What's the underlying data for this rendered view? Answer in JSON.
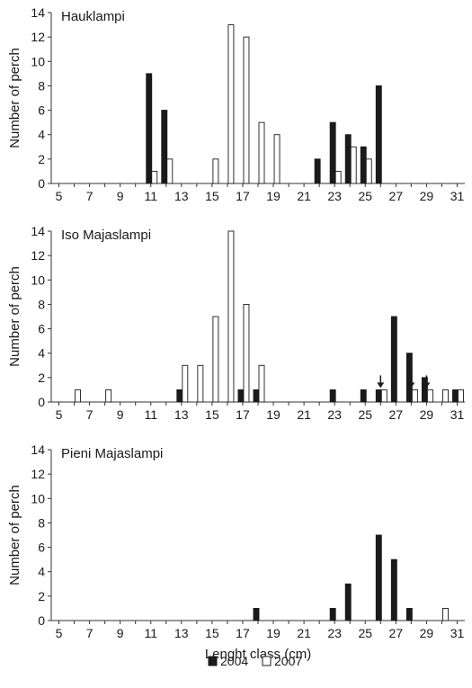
{
  "chart_data": [
    {
      "type": "bar",
      "title": "Hauklampi",
      "ylabel": "Number of perch",
      "xlabel": "",
      "x_categories": [
        5,
        6,
        7,
        8,
        9,
        10,
        11,
        12,
        13,
        14,
        15,
        16,
        17,
        18,
        19,
        20,
        21,
        22,
        23,
        24,
        25,
        26,
        27,
        28,
        29,
        30,
        31
      ],
      "x_tick_labels": [
        "5",
        "7",
        "9",
        "11",
        "13",
        "15",
        "17",
        "19",
        "21",
        "23",
        "25",
        "27",
        "29",
        "31"
      ],
      "ylim": [
        0,
        14
      ],
      "y_ticks": [
        "0",
        "2",
        "4",
        "6",
        "8",
        "10",
        "12",
        "14"
      ],
      "series": [
        {
          "name": "2004",
          "points": [
            [
              11,
              9
            ],
            [
              12,
              6
            ],
            [
              22,
              2
            ],
            [
              23,
              5
            ],
            [
              24,
              4
            ],
            [
              25,
              3
            ],
            [
              26,
              8
            ]
          ]
        },
        {
          "name": "2007",
          "points": [
            [
              11,
              1
            ],
            [
              12,
              2
            ],
            [
              15,
              2
            ],
            [
              16,
              13
            ],
            [
              17,
              12
            ],
            [
              18,
              5
            ],
            [
              19,
              4
            ],
            [
              23,
              1
            ],
            [
              24,
              3
            ],
            [
              25,
              2
            ]
          ]
        }
      ],
      "arrows_at": []
    },
    {
      "type": "bar",
      "title": "Iso Majaslampi",
      "ylabel": "Number of perch",
      "xlabel": "",
      "x_categories": [
        5,
        6,
        7,
        8,
        9,
        10,
        11,
        12,
        13,
        14,
        15,
        16,
        17,
        18,
        19,
        20,
        21,
        22,
        23,
        24,
        25,
        26,
        27,
        28,
        29,
        30,
        31
      ],
      "x_tick_labels": [
        "5",
        "7",
        "9",
        "11",
        "13",
        "15",
        "17",
        "19",
        "21",
        "23",
        "25",
        "27",
        "29",
        "31"
      ],
      "ylim": [
        0,
        14
      ],
      "y_ticks": [
        "0",
        "2",
        "4",
        "6",
        "8",
        "10",
        "12",
        "14"
      ],
      "series": [
        {
          "name": "2004",
          "points": [
            [
              13,
              1
            ],
            [
              17,
              1
            ],
            [
              18,
              1
            ],
            [
              23,
              1
            ],
            [
              25,
              1
            ],
            [
              26,
              1
            ],
            [
              27,
              7
            ],
            [
              28,
              4
            ],
            [
              29,
              2
            ],
            [
              31,
              1
            ]
          ]
        },
        {
          "name": "2007",
          "points": [
            [
              6,
              1
            ],
            [
              8,
              1
            ],
            [
              13,
              3
            ],
            [
              14,
              3
            ],
            [
              15,
              7
            ],
            [
              16,
              14
            ],
            [
              17,
              8
            ],
            [
              18,
              3
            ],
            [
              26,
              1
            ],
            [
              28,
              1
            ],
            [
              29,
              1
            ],
            [
              30,
              1
            ],
            [
              31,
              1
            ]
          ]
        }
      ],
      "arrows_at": [
        26,
        28,
        29
      ]
    },
    {
      "type": "bar",
      "title": "Pieni Majaslampi",
      "ylabel": "Number of perch",
      "xlabel": "Lenght class (cm)",
      "x_categories": [
        5,
        6,
        7,
        8,
        9,
        10,
        11,
        12,
        13,
        14,
        15,
        16,
        17,
        18,
        19,
        20,
        21,
        22,
        23,
        24,
        25,
        26,
        27,
        28,
        29,
        30,
        31
      ],
      "x_tick_labels": [
        "5",
        "7",
        "9",
        "11",
        "13",
        "15",
        "17",
        "19",
        "21",
        "23",
        "25",
        "27",
        "29",
        "31"
      ],
      "ylim": [
        0,
        14
      ],
      "y_ticks": [
        "0",
        "2",
        "4",
        "6",
        "8",
        "10",
        "12",
        "14"
      ],
      "series": [
        {
          "name": "2004",
          "points": [
            [
              18,
              1
            ],
            [
              23,
              1
            ],
            [
              24,
              3
            ],
            [
              26,
              7
            ],
            [
              27,
              5
            ],
            [
              28,
              1
            ]
          ]
        },
        {
          "name": "2007",
          "points": [
            [
              30,
              1
            ]
          ]
        }
      ],
      "arrows_at": []
    }
  ],
  "legend": {
    "placement": "bottom-center",
    "items": [
      {
        "label": "2004",
        "fill": "#1a1a1a"
      },
      {
        "label": "2007",
        "fill": "#ffffff"
      }
    ]
  },
  "colors": {
    "series_2004": "#1a1a1a",
    "series_2007": "#ffffff",
    "stroke": "#1a1a1a"
  }
}
